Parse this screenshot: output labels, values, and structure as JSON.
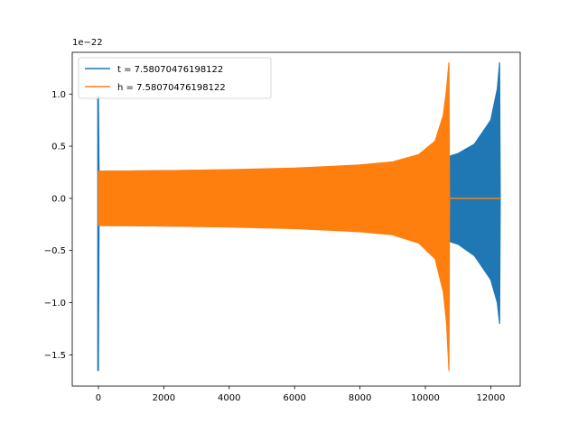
{
  "chart_data": {
    "type": "line",
    "title": "",
    "xlabel": "",
    "ylabel": "",
    "y_scale_label": "1e−22",
    "xlim": [
      -800,
      12900
    ],
    "ylim": [
      -1.8,
      1.4
    ],
    "x_ticks": [
      0,
      2000,
      4000,
      6000,
      8000,
      10000,
      12000
    ],
    "x_tick_labels": [
      "0",
      "2000",
      "4000",
      "6000",
      "8000",
      "10000",
      "12000"
    ],
    "y_ticks": [
      -1.5,
      -1.0,
      -0.5,
      0.0,
      0.5,
      1.0
    ],
    "y_tick_labels": [
      "−1.5",
      "−1.0",
      "−0.5",
      "0.0",
      "0.5",
      "1.0"
    ],
    "grid": false,
    "legend_position": "top-left",
    "series": [
      {
        "name": "t = 7.58070476198122",
        "color": "#1f77b4",
        "description": "oscillating waveform envelope",
        "envelope_upper": [
          [
            -20,
            0.98
          ],
          [
            0,
            0.98
          ],
          [
            20,
            0.26
          ],
          [
            2000,
            0.265
          ],
          [
            4000,
            0.27
          ],
          [
            6000,
            0.285
          ],
          [
            8000,
            0.31
          ],
          [
            10000,
            0.36
          ],
          [
            10700,
            0.4
          ],
          [
            11000,
            0.43
          ],
          [
            11500,
            0.52
          ],
          [
            12000,
            0.75
          ],
          [
            12200,
            1.05
          ],
          [
            12270,
            1.3
          ],
          [
            12290,
            0.0
          ]
        ],
        "envelope_lower": [
          [
            -20,
            -1.65
          ],
          [
            0,
            -1.65
          ],
          [
            20,
            -0.26
          ],
          [
            2000,
            -0.265
          ],
          [
            4000,
            -0.27
          ],
          [
            6000,
            -0.285
          ],
          [
            8000,
            -0.31
          ],
          [
            10000,
            -0.36
          ],
          [
            10700,
            -0.41
          ],
          [
            11000,
            -0.44
          ],
          [
            11500,
            -0.55
          ],
          [
            12000,
            -0.78
          ],
          [
            12200,
            -1.0
          ],
          [
            12270,
            -1.2
          ],
          [
            12290,
            0.0
          ]
        ]
      },
      {
        "name": "h = 7.58070476198122",
        "color": "#ff7f0e",
        "description": "oscillating waveform envelope, zero after merger",
        "envelope_upper": [
          [
            0,
            0.26
          ],
          [
            2000,
            0.265
          ],
          [
            4000,
            0.275
          ],
          [
            6000,
            0.29
          ],
          [
            8000,
            0.32
          ],
          [
            9000,
            0.35
          ],
          [
            9800,
            0.42
          ],
          [
            10300,
            0.55
          ],
          [
            10550,
            0.8
          ],
          [
            10650,
            1.05
          ],
          [
            10720,
            1.3
          ],
          [
            10740,
            0.0
          ]
        ],
        "envelope_lower": [
          [
            0,
            -0.26
          ],
          [
            2000,
            -0.265
          ],
          [
            4000,
            -0.275
          ],
          [
            6000,
            -0.29
          ],
          [
            8000,
            -0.32
          ],
          [
            9000,
            -0.35
          ],
          [
            9800,
            -0.43
          ],
          [
            10300,
            -0.58
          ],
          [
            10550,
            -0.9
          ],
          [
            10650,
            -1.2
          ],
          [
            10720,
            -1.65
          ],
          [
            10740,
            0.0
          ]
        ],
        "tail": [
          [
            10740,
            0.0
          ],
          [
            12290,
            0.0
          ]
        ]
      }
    ]
  }
}
